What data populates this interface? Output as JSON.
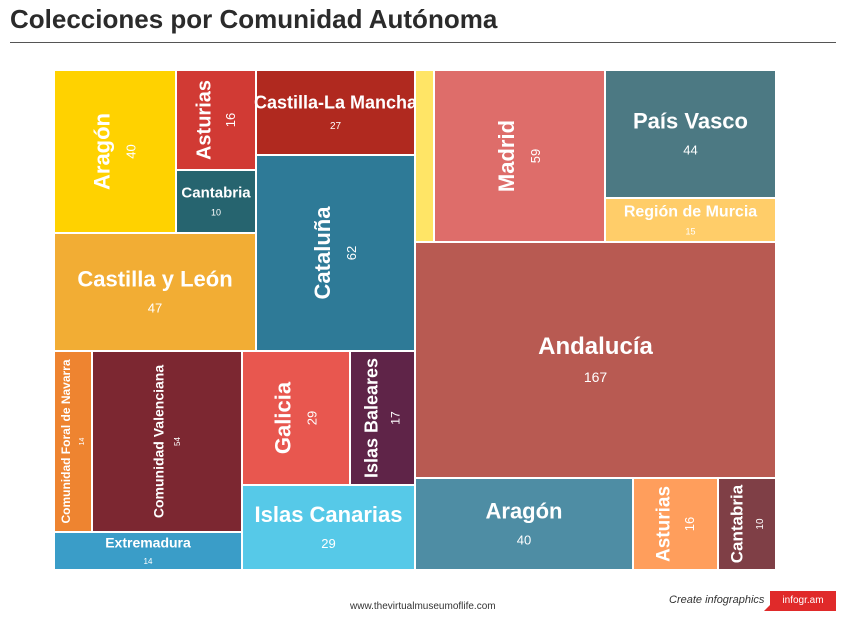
{
  "title": "Colecciones por Comunidad Autónoma",
  "footer": {
    "url": "www.thevirtualmuseumoflife.com",
    "create_label": "Create infographics",
    "brand": "infogr.am",
    "brand_color": "#e02a2a"
  },
  "chart_data": {
    "type": "treemap",
    "items": [
      {
        "label": "Aragón",
        "value": 40,
        "color": "#FFD200"
      },
      {
        "label": "Asturias",
        "value": 16,
        "color": "#D13A34"
      },
      {
        "label": "Cantabria",
        "value": 10,
        "color": "#26646F"
      },
      {
        "label": "Castilla-La Mancha",
        "value": 27,
        "color": "#B0291F"
      },
      {
        "label": "Castilla y León",
        "value": 47,
        "color": "#F2AD34"
      },
      {
        "label": "Cataluña",
        "value": 62,
        "color": "#2E7A97"
      },
      {
        "label": "",
        "value": null,
        "color": "#FFE566"
      },
      {
        "label": "Madrid",
        "value": 59,
        "color": "#DE6D6A"
      },
      {
        "label": "País Vasco",
        "value": 44,
        "color": "#4C7983"
      },
      {
        "label": "Región de Murcia",
        "value": 15,
        "color": "#FFCD69"
      },
      {
        "label": "Andalucía",
        "value": 167,
        "color": "#B85A52"
      },
      {
        "label": "Comunidad Foral de Navarra",
        "value": 14,
        "color": "#EE8430"
      },
      {
        "label": "Comunidad Valenciana",
        "value": 54,
        "color": "#7C2731"
      },
      {
        "label": "Galicia",
        "value": 29,
        "color": "#E8574F"
      },
      {
        "label": "Islas Baleares",
        "value": 17,
        "color": "#5F2448"
      },
      {
        "label": "Extremadura",
        "value": 14,
        "color": "#3A9DC8"
      },
      {
        "label": "Islas Canarias",
        "value": 29,
        "color": "#56C9E8"
      },
      {
        "label": "Aragón",
        "value": 40,
        "color": "#4E8DA4"
      },
      {
        "label": "Asturias",
        "value": 16,
        "color": "#FF9E5C"
      },
      {
        "label": "Cantabria",
        "value": 10,
        "color": "#7F3F46"
      }
    ]
  }
}
